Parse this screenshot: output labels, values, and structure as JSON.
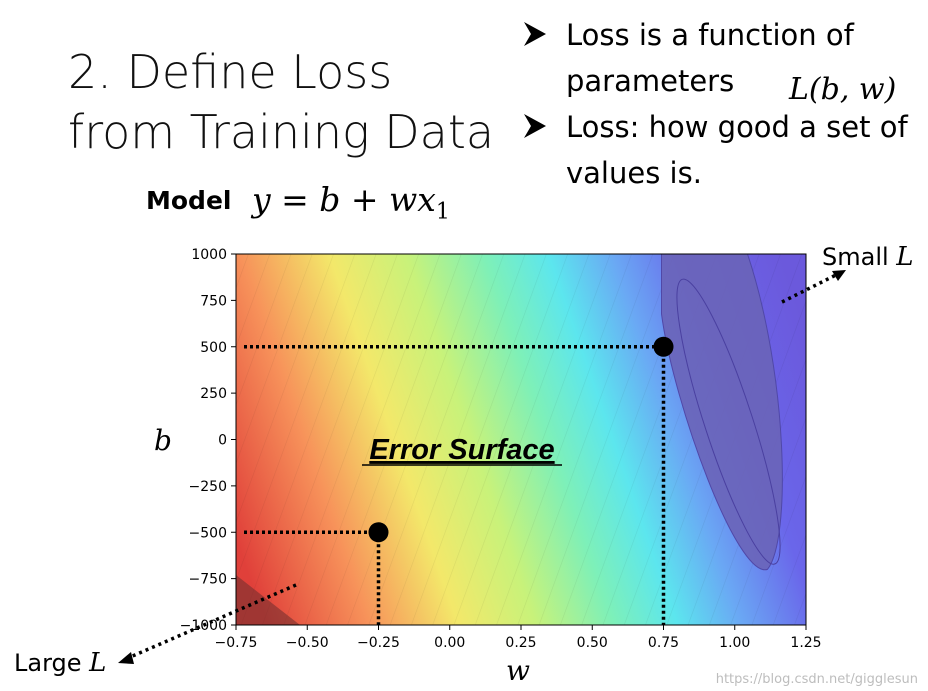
{
  "slide": {
    "title_line1": "2. Define Loss",
    "title_line2": "from Training Data",
    "bullets": [
      {
        "text_line1": "Loss is a function of",
        "text_line2": "parameters"
      },
      {
        "text_line1": "Loss: how good a set of",
        "text_line2": "values is."
      }
    ],
    "loss_notation": "L(b, w)",
    "model_label": "Model",
    "model_equation": "y = b + wx",
    "model_subscript": "1",
    "small_label": "Small",
    "large_label": "Large",
    "loss_symbol": "L",
    "watermark": "https://blog.csdn.net/gigglesun",
    "colors": {
      "marker": "#000000",
      "dotted_line": "#000000"
    }
  },
  "chart_data": {
    "type": "heatmap",
    "title": "Error Surface",
    "xlabel": "w",
    "ylabel": "b",
    "xlim": [
      -0.75,
      1.25
    ],
    "ylim": [
      -1000,
      1000
    ],
    "xticks": [
      -0.75,
      -0.5,
      -0.25,
      0.0,
      0.25,
      0.5,
      0.75,
      1.0,
      1.25
    ],
    "xtick_labels": [
      "−0.75",
      "−0.50",
      "−0.25",
      "0.00",
      "0.25",
      "0.50",
      "0.75",
      "1.00",
      "1.25"
    ],
    "yticks": [
      1000,
      750,
      500,
      250,
      0,
      -250,
      -500,
      -750,
      -1000
    ],
    "ytick_labels": [
      "1000",
      "750",
      "500",
      "250",
      "0",
      "−250",
      "−500",
      "−750",
      "−1000"
    ],
    "colormap": "rainbow (red = large loss, blue = small loss)",
    "minimum_region": {
      "w": [
        0.75,
        1.15
      ],
      "b": [
        -700,
        1000
      ]
    },
    "points": [
      {
        "w": 0.75,
        "b": 500
      },
      {
        "w": -0.25,
        "b": -500
      }
    ],
    "grid": false
  }
}
